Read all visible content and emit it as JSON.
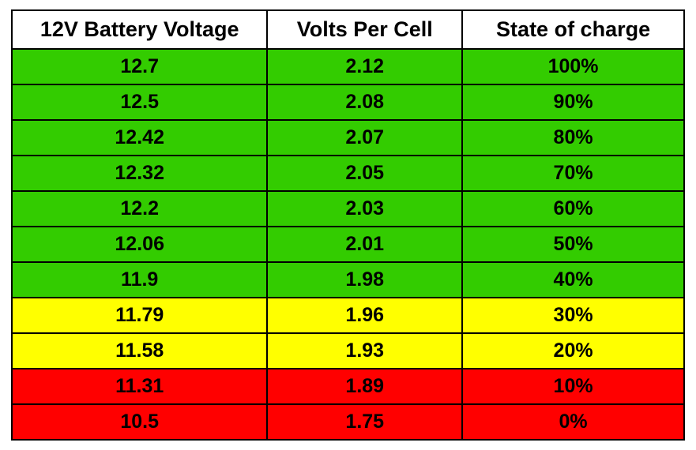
{
  "table": {
    "type": "table",
    "border_color": "#000000",
    "header_bg": "#ffffff",
    "header_text_color": "#000000",
    "header_fontsize": 27,
    "cell_fontsize": 25,
    "cell_text_color": "#000000",
    "font_weight": "bold",
    "column_widths_pct": [
      38,
      29,
      33
    ],
    "columns": [
      "12V Battery Voltage",
      "Volts Per Cell",
      "State of charge"
    ],
    "rows": [
      {
        "cells": [
          "12.7",
          "2.12",
          "100%"
        ],
        "bg": "#33cc00"
      },
      {
        "cells": [
          "12.5",
          "2.08",
          "90%"
        ],
        "bg": "#33cc00"
      },
      {
        "cells": [
          "12.42",
          "2.07",
          "80%"
        ],
        "bg": "#33cc00"
      },
      {
        "cells": [
          "12.32",
          "2.05",
          "70%"
        ],
        "bg": "#33cc00"
      },
      {
        "cells": [
          "12.2",
          "2.03",
          "60%"
        ],
        "bg": "#33cc00"
      },
      {
        "cells": [
          "12.06",
          "2.01",
          "50%"
        ],
        "bg": "#33cc00"
      },
      {
        "cells": [
          "11.9",
          "1.98",
          "40%"
        ],
        "bg": "#33cc00"
      },
      {
        "cells": [
          "11.79",
          "1.96",
          "30%"
        ],
        "bg": "#ffff00"
      },
      {
        "cells": [
          "11.58",
          "1.93",
          "20%"
        ],
        "bg": "#ffff00"
      },
      {
        "cells": [
          "11.31",
          "1.89",
          "10%"
        ],
        "bg": "#ff0000"
      },
      {
        "cells": [
          "10.5",
          "1.75",
          "0%"
        ],
        "bg": "#ff0000"
      }
    ]
  }
}
